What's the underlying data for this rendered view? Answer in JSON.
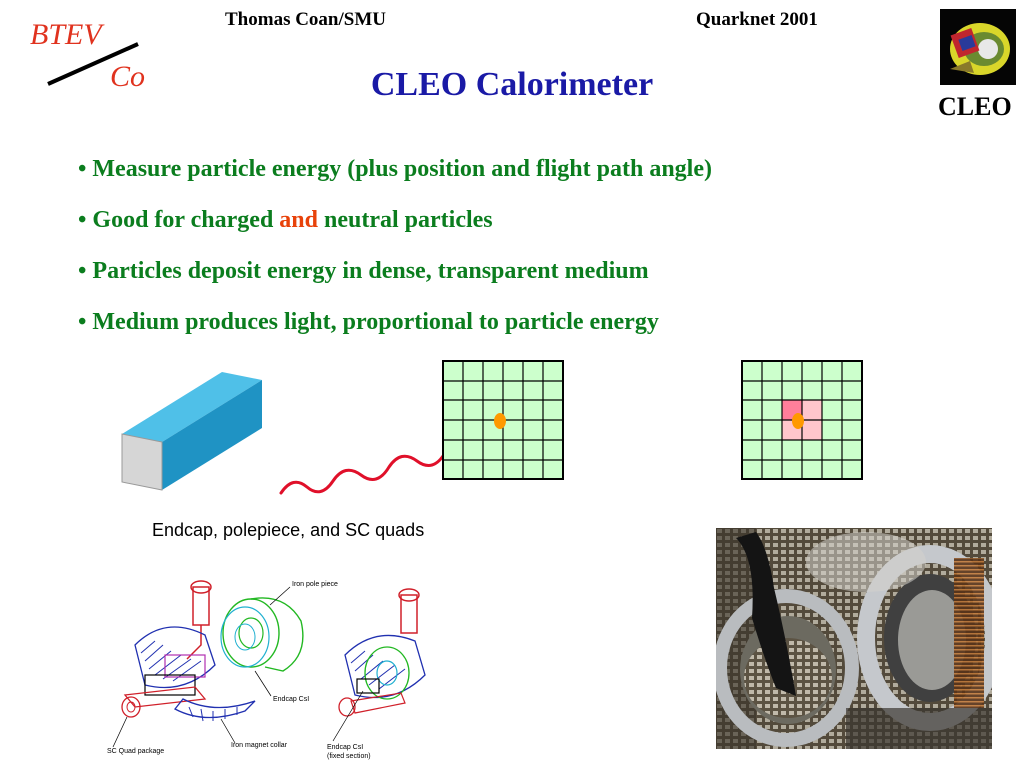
{
  "header": {
    "author": "Thomas Coan/SMU",
    "event": "Quarknet 2001"
  },
  "logo": {
    "line1": "BTEV",
    "line2": "Co",
    "color": "#e0321e"
  },
  "cleo_badge": {
    "label": "CLEO"
  },
  "title": "CLEO Calorimeter",
  "bullets": [
    {
      "text": "Measure particle energy (plus position and flight path angle)"
    },
    {
      "pre": "Good for charged ",
      "highlight": "and",
      "post": " neutral particles"
    },
    {
      "text": "Particles deposit energy in dense, transparent medium"
    },
    {
      "text": "Medium produces light, proportional to particle energy"
    }
  ],
  "diagram": {
    "caption": "Endcap, polepiece, and SC quads",
    "labels": {
      "iron_pole_piece": "Iron pole piece",
      "endcap_csi": "Endcap CsI",
      "sc_quad_package": "SC Quad package",
      "iron_magnet_collar": "Iron magnet collar",
      "endcap_csi_fixed": "Endcap CsI",
      "fixed_section": "(fixed section)"
    }
  },
  "colors": {
    "title": "#1a1aa6",
    "bullet_text": "#0b7d1e",
    "highlight": "#e8420a",
    "grid_fill": "#ccffcc",
    "crystal_top": "#1f9fd0",
    "hit_orange": "#ff9900",
    "photon": "#e0102a"
  }
}
